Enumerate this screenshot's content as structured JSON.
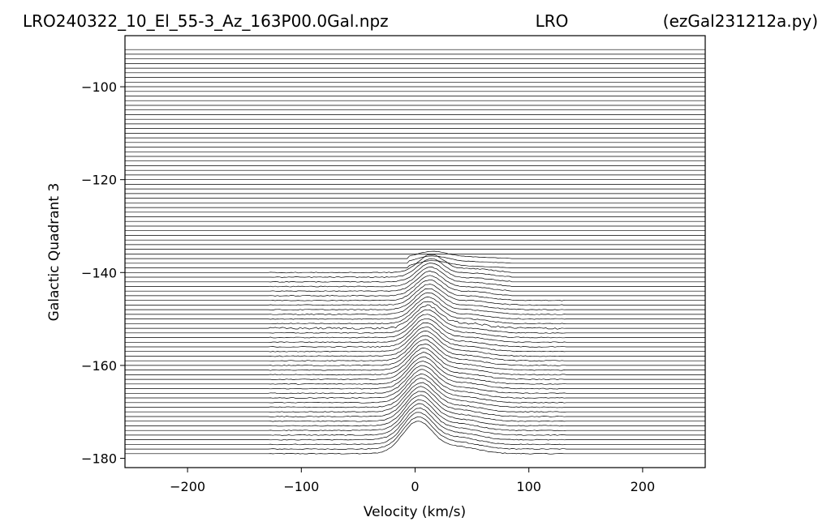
{
  "chart_data": {
    "type": "line",
    "title_left": "LRO240322_10_El_55-3_Az_163P00.0Gal.npz",
    "title_center": "LRO",
    "title_right": "(ezGal231212a.py)",
    "xlabel": "Velocity (km/s)",
    "ylabel": "Galactic Quadrant 3",
    "xlim": [
      -255,
      255
    ],
    "ylim": [
      -182,
      -89
    ],
    "x_ticks": [
      -200,
      -100,
      0,
      100,
      200
    ],
    "y_ticks": [
      -180,
      -160,
      -140,
      -120,
      -100
    ],
    "x_tick_labels": [
      "−200",
      "−100",
      "0",
      "100",
      "200"
    ],
    "y_tick_labels": [
      "−180",
      "−160",
      "−140",
      "−120",
      "−100"
    ],
    "trace_offsets": {
      "first": -179,
      "last": -92,
      "step": 1
    },
    "detected_trace_velocity_range": [
      -127,
      131
    ],
    "line_color": "#000000",
    "grid": false,
    "legend": "none"
  }
}
